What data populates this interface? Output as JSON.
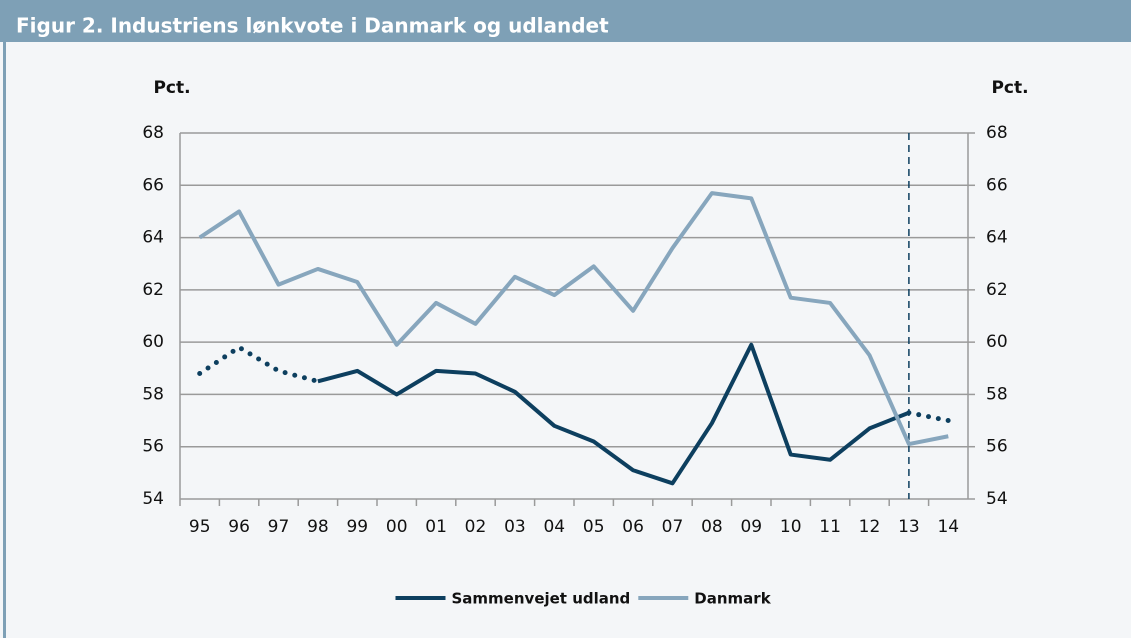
{
  "chart_data": {
    "type": "line",
    "title": "Figur 2. Industriens lønkvote i Danmark og udlandet",
    "y_label": "Pct.",
    "y2_label": "Pct.",
    "categories": [
      "95",
      "96",
      "97",
      "98",
      "99",
      "00",
      "01",
      "02",
      "03",
      "04",
      "05",
      "06",
      "07",
      "08",
      "09",
      "10",
      "11",
      "12",
      "13",
      "14"
    ],
    "series": [
      {
        "name": "Sammenvejet udland",
        "color": "#0d3f5f",
        "values": [
          58.8,
          59.8,
          58.9,
          58.5,
          58.9,
          58.0,
          58.9,
          58.8,
          58.1,
          56.8,
          56.2,
          55.1,
          54.6,
          56.9,
          59.9,
          55.7,
          55.5,
          56.7,
          57.3,
          57.0
        ],
        "dotted_segments": [
          [
            0,
            3
          ],
          [
            18,
            19
          ]
        ]
      },
      {
        "name": "Danmark",
        "color": "#87a6bd",
        "values": [
          64.0,
          65.0,
          62.2,
          62.8,
          62.3,
          59.9,
          61.5,
          60.7,
          62.5,
          61.8,
          62.9,
          61.2,
          63.6,
          65.7,
          65.5,
          61.7,
          61.5,
          59.5,
          56.1,
          56.4
        ],
        "dotted_segments": []
      }
    ],
    "vertical_line_at": "13",
    "ylim": [
      54,
      68
    ],
    "yticks": [
      54,
      56,
      58,
      60,
      62,
      64,
      66,
      68
    ],
    "y2lim": [
      54,
      68
    ],
    "y2ticks": [
      54,
      56,
      58,
      60,
      62,
      64,
      66,
      68
    ],
    "grid": true,
    "legend": "bottom"
  }
}
